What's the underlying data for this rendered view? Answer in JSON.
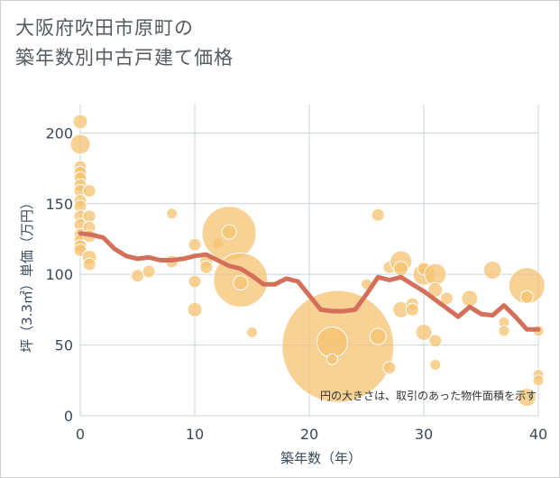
{
  "title_lines": [
    "大阪府吹田市原町の",
    "築年数別中古戸建て価格"
  ],
  "chart_data": {
    "type": "scatter",
    "title": "大阪府吹田市原町の築年数別中古戸建て価格",
    "xlabel": "築年数（年）",
    "ylabel": "坪（3.3㎡）単価（万円）",
    "xlim": [
      0,
      40
    ],
    "ylim": [
      0,
      220
    ],
    "xticks": [
      0,
      10,
      20,
      30,
      40
    ],
    "yticks": [
      0,
      50,
      100,
      150,
      200
    ],
    "grid": true,
    "annotation": "円の大きさは、取引のあった物件面積を示す",
    "colors": {
      "bubble": "#f5c170",
      "bubble_edge": "#ffffff",
      "line": "#d4705a",
      "grid": "#c9d3dc"
    },
    "series": [
      {
        "kind": "bubbles",
        "points": [
          {
            "x": 0,
            "y": 208,
            "s": 8
          },
          {
            "x": 0,
            "y": 192,
            "s": 11
          },
          {
            "x": 0,
            "y": 176,
            "s": 7
          },
          {
            "x": 0,
            "y": 172,
            "s": 7
          },
          {
            "x": 0,
            "y": 168,
            "s": 7
          },
          {
            "x": 0,
            "y": 163,
            "s": 7
          },
          {
            "x": 0,
            "y": 159,
            "s": 7
          },
          {
            "x": 0,
            "y": 152,
            "s": 7
          },
          {
            "x": 0,
            "y": 148,
            "s": 7
          },
          {
            "x": 0,
            "y": 141,
            "s": 7
          },
          {
            "x": 0,
            "y": 135,
            "s": 7
          },
          {
            "x": 0,
            "y": 128,
            "s": 7
          },
          {
            "x": 0,
            "y": 124,
            "s": 7
          },
          {
            "x": 0,
            "y": 120,
            "s": 7
          },
          {
            "x": 0,
            "y": 117,
            "s": 7
          },
          {
            "x": 0.8,
            "y": 159,
            "s": 7
          },
          {
            "x": 0.8,
            "y": 141,
            "s": 7
          },
          {
            "x": 0.8,
            "y": 133,
            "s": 7
          },
          {
            "x": 0.8,
            "y": 127,
            "s": 7
          },
          {
            "x": 0.8,
            "y": 112,
            "s": 8
          },
          {
            "x": 0.8,
            "y": 107,
            "s": 7
          },
          {
            "x": 5,
            "y": 99,
            "s": 7
          },
          {
            "x": 6,
            "y": 102,
            "s": 7
          },
          {
            "x": 8,
            "y": 143,
            "s": 6
          },
          {
            "x": 8,
            "y": 109,
            "s": 7
          },
          {
            "x": 10,
            "y": 121,
            "s": 7
          },
          {
            "x": 10,
            "y": 95,
            "s": 7
          },
          {
            "x": 10,
            "y": 75,
            "s": 8
          },
          {
            "x": 11,
            "y": 109,
            "s": 7
          },
          {
            "x": 11,
            "y": 105,
            "s": 7
          },
          {
            "x": 12,
            "y": 122,
            "s": 6
          },
          {
            "x": 13,
            "y": 129,
            "s": 30
          },
          {
            "x": 13,
            "y": 130,
            "s": 8
          },
          {
            "x": 14,
            "y": 96,
            "s": 30
          },
          {
            "x": 14,
            "y": 94,
            "s": 8
          },
          {
            "x": 15,
            "y": 59,
            "s": 6
          },
          {
            "x": 22.5,
            "y": 49,
            "s": 62
          },
          {
            "x": 22,
            "y": 52,
            "s": 17
          },
          {
            "x": 22,
            "y": 40,
            "s": 6
          },
          {
            "x": 25,
            "y": 93,
            "s": 6
          },
          {
            "x": 26,
            "y": 142,
            "s": 7
          },
          {
            "x": 26,
            "y": 56,
            "s": 9
          },
          {
            "x": 27,
            "y": 105,
            "s": 7
          },
          {
            "x": 27,
            "y": 34,
            "s": 7
          },
          {
            "x": 28,
            "y": 109,
            "s": 12
          },
          {
            "x": 28,
            "y": 104,
            "s": 8
          },
          {
            "x": 28,
            "y": 75,
            "s": 9
          },
          {
            "x": 29,
            "y": 79,
            "s": 7
          },
          {
            "x": 29,
            "y": 75,
            "s": 7
          },
          {
            "x": 30,
            "y": 100,
            "s": 12
          },
          {
            "x": 30,
            "y": 104,
            "s": 7
          },
          {
            "x": 30,
            "y": 59,
            "s": 9
          },
          {
            "x": 31,
            "y": 100,
            "s": 12
          },
          {
            "x": 31,
            "y": 89,
            "s": 8
          },
          {
            "x": 31,
            "y": 53,
            "s": 7
          },
          {
            "x": 31,
            "y": 36,
            "s": 6
          },
          {
            "x": 32,
            "y": 83,
            "s": 7
          },
          {
            "x": 34,
            "y": 83,
            "s": 9
          },
          {
            "x": 36,
            "y": 103,
            "s": 10
          },
          {
            "x": 37,
            "y": 66,
            "s": 6
          },
          {
            "x": 37,
            "y": 60,
            "s": 6
          },
          {
            "x": 39,
            "y": 92,
            "s": 20
          },
          {
            "x": 39,
            "y": 84,
            "s": 7
          },
          {
            "x": 39,
            "y": 13,
            "s": 10
          },
          {
            "x": 40,
            "y": 60,
            "s": 6
          },
          {
            "x": 40,
            "y": 29,
            "s": 6
          },
          {
            "x": 40,
            "y": 25,
            "s": 6
          }
        ]
      },
      {
        "kind": "line",
        "x": [
          0,
          1,
          2,
          3,
          4,
          5,
          6,
          7,
          8,
          9,
          10,
          11,
          12,
          13,
          14,
          15,
          16,
          17,
          18,
          19,
          20,
          21,
          22,
          23,
          24,
          25,
          26,
          27,
          28,
          29,
          30,
          31,
          32,
          33,
          34,
          35,
          36,
          37,
          38,
          39,
          40
        ],
        "y": [
          129,
          128,
          126,
          118,
          113,
          111,
          112,
          110,
          110,
          111,
          113,
          114,
          110,
          106,
          104,
          99,
          93,
          93,
          97,
          95,
          85,
          75,
          74,
          74,
          75,
          86,
          98,
          96,
          98,
          93,
          88,
          82,
          76,
          70,
          77,
          72,
          71,
          78,
          70,
          61,
          61
        ]
      }
    ]
  }
}
